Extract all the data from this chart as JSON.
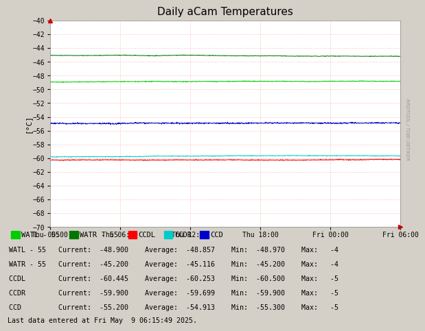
{
  "title": "Daily aCam Temperatures",
  "ylabel": "[°C]",
  "ylim": [
    -70.0,
    -40.0
  ],
  "yticks": [
    -70.0,
    -68.0,
    -66.0,
    -64.0,
    -62.0,
    -60.0,
    -58.0,
    -56.0,
    -54.0,
    -52.0,
    -50.0,
    -48.0,
    -46.0,
    -44.0,
    -42.0,
    -40.0
  ],
  "background_color": "#d4d0c8",
  "plot_bg_color": "#ffffff",
  "grid_color": "#ffaaaa",
  "watermark": "RRDTOOL / TOBI OETIKER",
  "series_order": [
    "WATL",
    "WATR",
    "CCD",
    "CCDR",
    "CCDL"
  ],
  "series": {
    "WATL": {
      "label": "WATL - 55",
      "color": "#00cc00",
      "avg": -48.857,
      "min": -48.97,
      "max": -48.7,
      "current": -48.9,
      "base": -48.857,
      "noise": 0.1,
      "seed": 1
    },
    "WATR": {
      "label": "WATR - 55",
      "color": "#007700",
      "avg": -45.116,
      "min": -45.2,
      "max": -44.9,
      "current": -45.2,
      "base": -45.116,
      "noise": 0.08,
      "seed": 2
    },
    "CCDL": {
      "label": "CCDL",
      "color": "#ff0000",
      "avg": -60.253,
      "min": -60.5,
      "max": -59.8,
      "current": -60.445,
      "base": -60.253,
      "noise": 0.12,
      "seed": 5
    },
    "CCDR": {
      "label": "CCDR",
      "color": "#00cccc",
      "avg": -59.699,
      "min": -59.9,
      "max": -59.4,
      "current": -59.9,
      "base": -59.699,
      "noise": 0.1,
      "seed": 4
    },
    "CCD": {
      "label": "CCD",
      "color": "#0000cc",
      "avg": -54.913,
      "min": -55.3,
      "max": -54.5,
      "current": -55.2,
      "base": -54.913,
      "noise": 0.2,
      "seed": 3
    }
  },
  "xtick_labels": [
    "Thu 00:00",
    "Thu 06:00",
    "Thu 12:00",
    "Thu 18:00",
    "Fri 00:00",
    "Fri 06:00"
  ],
  "n_points": 1080,
  "legend_items": [
    [
      "WATL - 55",
      "#00cc00"
    ],
    [
      "WATR - 55",
      "#007700"
    ],
    [
      "CCDL",
      "#ff0000"
    ],
    [
      "CCDR",
      "#00cccc"
    ],
    [
      "CCD",
      "#0000cc"
    ]
  ],
  "stats_rows": [
    [
      "WATL - 55",
      "-48.900",
      "-48.857",
      "-48.970",
      "-4"
    ],
    [
      "WATR - 55",
      "-45.200",
      "-45.116",
      "-45.200",
      "-4"
    ],
    [
      "CCDL",
      "-60.445",
      "-60.253",
      "-60.500",
      "-5"
    ],
    [
      "CCDR",
      "-59.900",
      "-59.699",
      "-59.900",
      "-5"
    ],
    [
      "CCD",
      "-55.200",
      "-54.913",
      "-55.300",
      "-5"
    ]
  ],
  "last_data_line": "Last data entered at Fri May  9 06:15:49 2025."
}
